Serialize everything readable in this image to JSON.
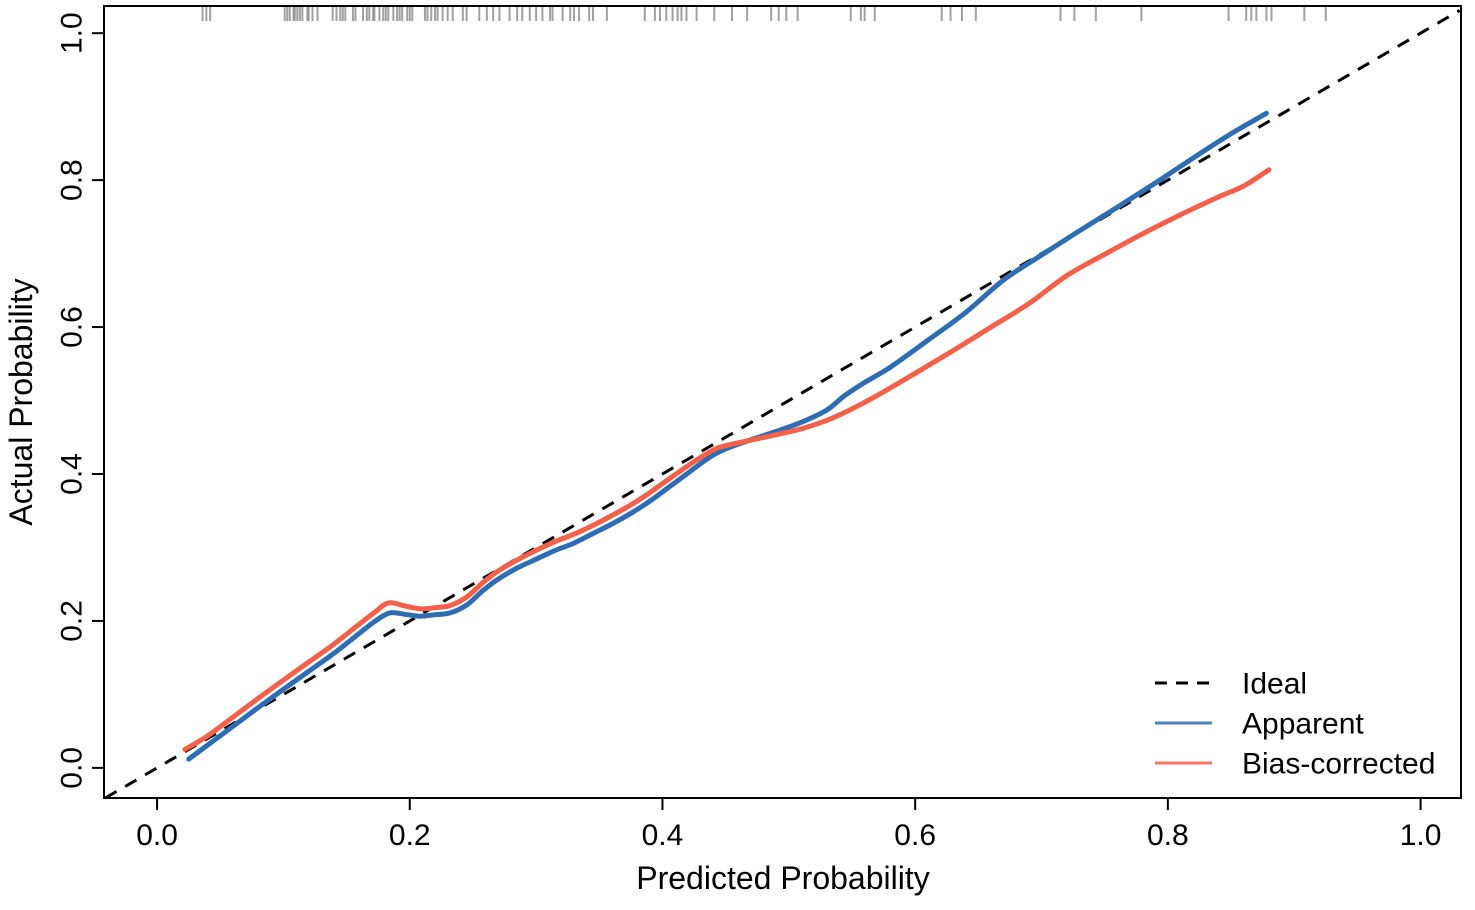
{
  "figure": {
    "background": "#ffffff"
  },
  "chart_data": {
    "type": "line",
    "title": "",
    "xlabel": "Predicted Probability",
    "ylabel": "Actual Probability",
    "xlim": [
      -0.042,
      1.032
    ],
    "ylim": [
      -0.041,
      1.037
    ],
    "grid": false,
    "legend_position": "bottom-right",
    "x_ticks": [
      0.0,
      0.2,
      0.4,
      0.6,
      0.8,
      1.0
    ],
    "y_ticks": [
      0.0,
      0.2,
      0.4,
      0.6,
      0.8,
      1.0
    ],
    "x_tick_labels": [
      "0.0",
      "0.2",
      "0.4",
      "0.6",
      "0.8",
      "1.0"
    ],
    "y_tick_labels": [
      "0.0",
      "0.2",
      "0.4",
      "0.6",
      "0.8",
      "1.0"
    ],
    "series": [
      {
        "name": "Ideal",
        "style": "dashed",
        "color": "#000000",
        "width": 3,
        "points": [
          [
            -0.041,
            -0.041
          ],
          [
            1.031,
            1.031
          ]
        ]
      },
      {
        "name": "Apparent",
        "style": "solid",
        "color": "#2e6db4",
        "width": 5,
        "points": [
          [
            0.025,
            0.012
          ],
          [
            0.04,
            0.031
          ],
          [
            0.06,
            0.0565
          ],
          [
            0.08,
            0.082
          ],
          [
            0.1,
            0.107
          ],
          [
            0.12,
            0.1315
          ],
          [
            0.14,
            0.156
          ],
          [
            0.16,
            0.183
          ],
          [
            0.172,
            0.199
          ],
          [
            0.184,
            0.211
          ],
          [
            0.196,
            0.209
          ],
          [
            0.208,
            0.2065
          ],
          [
            0.22,
            0.2085
          ],
          [
            0.232,
            0.211
          ],
          [
            0.245,
            0.2215
          ],
          [
            0.258,
            0.2415
          ],
          [
            0.27,
            0.257
          ],
          [
            0.285,
            0.272
          ],
          [
            0.3,
            0.284
          ],
          [
            0.315,
            0.296
          ],
          [
            0.33,
            0.306
          ],
          [
            0.345,
            0.319
          ],
          [
            0.36,
            0.332
          ],
          [
            0.375,
            0.3465
          ],
          [
            0.39,
            0.363
          ],
          [
            0.405,
            0.382
          ],
          [
            0.42,
            0.401
          ],
          [
            0.432,
            0.4165
          ],
          [
            0.443,
            0.4285
          ],
          [
            0.455,
            0.4375
          ],
          [
            0.47,
            0.4465
          ],
          [
            0.49,
            0.458
          ],
          [
            0.51,
            0.4705
          ],
          [
            0.53,
            0.487
          ],
          [
            0.544,
            0.5065
          ],
          [
            0.56,
            0.5245
          ],
          [
            0.58,
            0.545
          ],
          [
            0.61,
            0.582
          ],
          [
            0.64,
            0.62
          ],
          [
            0.67,
            0.664
          ],
          [
            0.7,
            0.698
          ],
          [
            0.73,
            0.731
          ],
          [
            0.76,
            0.763
          ],
          [
            0.79,
            0.796
          ],
          [
            0.82,
            0.83
          ],
          [
            0.85,
            0.863
          ],
          [
            0.878,
            0.891
          ]
        ]
      },
      {
        "name": "Bias-corrected",
        "style": "solid",
        "color": "#f4604a",
        "width": 5,
        "points": [
          [
            0.022,
            0.025
          ],
          [
            0.04,
            0.0435
          ],
          [
            0.06,
            0.069
          ],
          [
            0.08,
            0.0945
          ],
          [
            0.1,
            0.1195
          ],
          [
            0.12,
            0.144
          ],
          [
            0.14,
            0.1685
          ],
          [
            0.16,
            0.1955
          ],
          [
            0.172,
            0.2115
          ],
          [
            0.183,
            0.2245
          ],
          [
            0.196,
            0.2205
          ],
          [
            0.208,
            0.2165
          ],
          [
            0.22,
            0.218
          ],
          [
            0.232,
            0.221
          ],
          [
            0.245,
            0.2325
          ],
          [
            0.258,
            0.2525
          ],
          [
            0.27,
            0.268
          ],
          [
            0.285,
            0.283
          ],
          [
            0.3,
            0.296
          ],
          [
            0.315,
            0.308
          ],
          [
            0.33,
            0.318
          ],
          [
            0.345,
            0.33
          ],
          [
            0.36,
            0.3435
          ],
          [
            0.375,
            0.358
          ],
          [
            0.39,
            0.3745
          ],
          [
            0.405,
            0.393
          ],
          [
            0.42,
            0.411
          ],
          [
            0.432,
            0.4245
          ],
          [
            0.443,
            0.435
          ],
          [
            0.455,
            0.4405
          ],
          [
            0.47,
            0.446
          ],
          [
            0.49,
            0.4535
          ],
          [
            0.51,
            0.4615
          ],
          [
            0.53,
            0.473
          ],
          [
            0.548,
            0.487
          ],
          [
            0.57,
            0.507
          ],
          [
            0.6,
            0.537
          ],
          [
            0.63,
            0.568
          ],
          [
            0.66,
            0.6
          ],
          [
            0.69,
            0.632
          ],
          [
            0.72,
            0.67
          ],
          [
            0.75,
            0.699
          ],
          [
            0.78,
            0.727
          ],
          [
            0.81,
            0.753
          ],
          [
            0.84,
            0.777
          ],
          [
            0.86,
            0.792
          ],
          [
            0.88,
            0.814
          ]
        ]
      }
    ],
    "rug": {
      "color": "#8a8a8a",
      "positions": [
        0.036,
        0.039,
        0.042,
        0.101,
        0.103,
        0.105,
        0.108,
        0.109,
        0.111,
        0.113,
        0.115,
        0.119,
        0.12,
        0.123,
        0.127,
        0.139,
        0.142,
        0.145,
        0.147,
        0.149,
        0.155,
        0.157,
        0.163,
        0.166,
        0.168,
        0.171,
        0.172,
        0.176,
        0.179,
        0.181,
        0.183,
        0.187,
        0.19,
        0.192,
        0.194,
        0.198,
        0.2,
        0.202,
        0.212,
        0.214,
        0.217,
        0.22,
        0.222,
        0.226,
        0.23,
        0.234,
        0.242,
        0.245,
        0.255,
        0.261,
        0.266,
        0.271,
        0.279,
        0.285,
        0.289,
        0.295,
        0.3,
        0.305,
        0.311,
        0.313,
        0.321,
        0.327,
        0.33,
        0.334,
        0.342,
        0.345,
        0.356,
        0.386,
        0.394,
        0.398,
        0.403,
        0.408,
        0.412,
        0.415,
        0.419,
        0.427,
        0.441,
        0.455,
        0.467,
        0.486,
        0.492,
        0.498,
        0.507,
        0.549,
        0.557,
        0.56,
        0.568,
        0.621,
        0.628,
        0.637,
        0.648,
        0.715,
        0.726,
        0.743,
        0.779,
        0.848,
        0.862,
        0.866,
        0.87,
        0.878,
        0.882,
        0.908,
        0.925
      ]
    }
  },
  "legend": {
    "items": [
      {
        "label": "Ideal"
      },
      {
        "label": "Apparent"
      },
      {
        "label": "Bias-corrected"
      }
    ]
  }
}
